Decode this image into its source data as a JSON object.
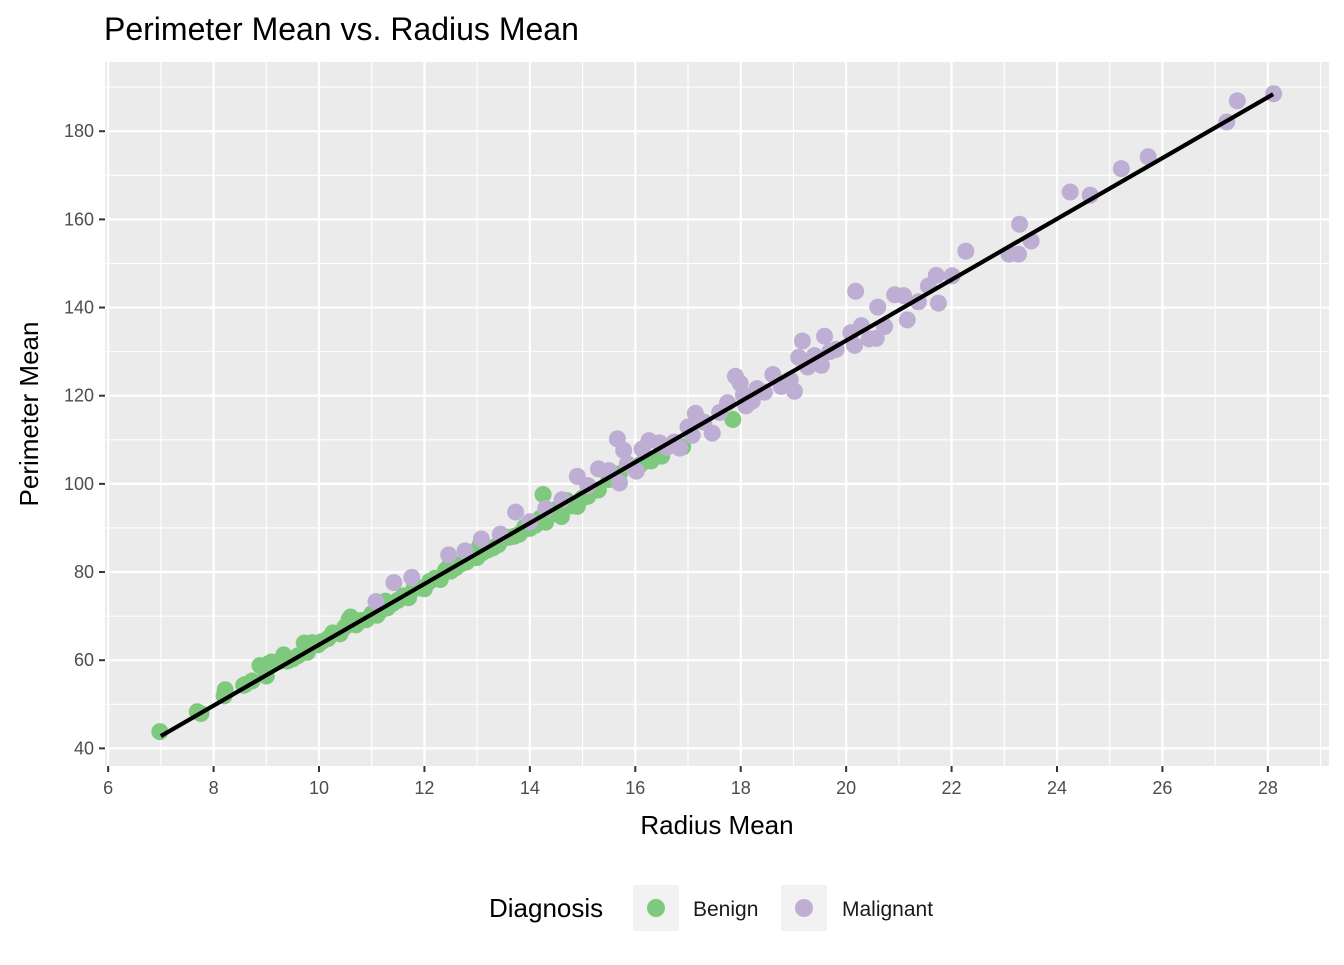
{
  "chart_data": {
    "type": "scatter",
    "title": "Perimeter Mean vs. Radius Mean",
    "xlabel": "Radius Mean",
    "ylabel": "Perimeter Mean",
    "xlim": [
      5.94,
      29.16
    ],
    "ylim": [
      36.0,
      195.7
    ],
    "x_ticks": [
      6,
      8,
      10,
      12,
      14,
      16,
      18,
      20,
      22,
      24,
      26,
      28
    ],
    "y_ticks": [
      40,
      60,
      80,
      100,
      120,
      140,
      160,
      180
    ],
    "grid": true,
    "legend": {
      "title": "Diagnosis",
      "placement": "bottom",
      "entries": [
        {
          "label": "Benign",
          "color": "#7fc97f"
        },
        {
          "label": "Malignant",
          "color": "#beaed4"
        }
      ]
    },
    "trend_line": {
      "x": [
        7.0,
        28.1
      ],
      "y": [
        42.8,
        188.4
      ],
      "color": "#000000"
    },
    "series": [
      {
        "name": "Benign",
        "color": "#7fc97f",
        "points": [
          [
            6.98,
            43.8
          ],
          [
            7.69,
            48.3
          ],
          [
            7.76,
            47.9
          ],
          [
            8.2,
            51.9
          ],
          [
            8.22,
            53.3
          ],
          [
            8.57,
            54.3
          ],
          [
            8.6,
            54.5
          ],
          [
            8.73,
            55.3
          ],
          [
            8.88,
            58.8
          ],
          [
            9.0,
            56.4
          ],
          [
            9.04,
            59.2
          ],
          [
            9.1,
            59.6
          ],
          [
            9.27,
            59.8
          ],
          [
            9.33,
            61.2
          ],
          [
            9.4,
            59.8
          ],
          [
            9.5,
            60.3
          ],
          [
            9.6,
            61.0
          ],
          [
            9.72,
            63.9
          ],
          [
            9.78,
            61.8
          ],
          [
            9.87,
            64.0
          ],
          [
            9.98,
            63.5
          ],
          [
            10.05,
            64.2
          ],
          [
            10.17,
            64.9
          ],
          [
            10.26,
            66.2
          ],
          [
            10.4,
            66.0
          ],
          [
            10.49,
            67.5
          ],
          [
            10.57,
            69.3
          ],
          [
            10.6,
            69.8
          ],
          [
            10.7,
            68.0
          ],
          [
            10.8,
            69.0
          ],
          [
            10.9,
            69.2
          ],
          [
            11.0,
            70.5
          ],
          [
            11.1,
            70.2
          ],
          [
            11.2,
            71.5
          ],
          [
            11.26,
            73.4
          ],
          [
            11.3,
            71.9
          ],
          [
            11.4,
            72.9
          ],
          [
            11.5,
            73.6
          ],
          [
            11.6,
            74.6
          ],
          [
            11.7,
            74.2
          ],
          [
            11.8,
            76.2
          ],
          [
            11.9,
            76.4
          ],
          [
            12.0,
            76.2
          ],
          [
            12.1,
            77.9
          ],
          [
            12.2,
            78.6
          ],
          [
            12.3,
            78.3
          ],
          [
            12.4,
            80.4
          ],
          [
            12.46,
            81.2
          ],
          [
            12.5,
            80.2
          ],
          [
            12.6,
            81.0
          ],
          [
            12.7,
            81.9
          ],
          [
            12.8,
            82.3
          ],
          [
            12.87,
            83.5
          ],
          [
            12.9,
            84.4
          ],
          [
            13.0,
            83.3
          ],
          [
            13.05,
            86.0
          ],
          [
            13.1,
            84.4
          ],
          [
            13.2,
            85.0
          ],
          [
            13.3,
            85.5
          ],
          [
            13.4,
            86.2
          ],
          [
            13.5,
            87.6
          ],
          [
            13.6,
            87.9
          ],
          [
            13.7,
            88.1
          ],
          [
            13.8,
            88.6
          ],
          [
            13.9,
            90.2
          ],
          [
            14.0,
            89.9
          ],
          [
            14.1,
            90.6
          ],
          [
            14.2,
            92.2
          ],
          [
            14.25,
            97.6
          ],
          [
            14.3,
            91.3
          ],
          [
            14.4,
            93.1
          ],
          [
            14.5,
            94.2
          ],
          [
            14.6,
            92.6
          ],
          [
            14.7,
            96.2
          ],
          [
            14.8,
            95.0
          ],
          [
            14.9,
            94.9
          ],
          [
            15.0,
            96.8
          ],
          [
            15.1,
            97.2
          ],
          [
            15.3,
            98.6
          ],
          [
            15.5,
            101.0
          ],
          [
            15.7,
            102.3
          ],
          [
            16.0,
            103.5
          ],
          [
            16.1,
            104.4
          ],
          [
            16.3,
            105.2
          ],
          [
            16.5,
            106.3
          ],
          [
            16.9,
            108.4
          ],
          [
            17.85,
            114.6
          ]
        ]
      },
      {
        "name": "Malignant",
        "color": "#beaed4",
        "points": [
          [
            11.08,
            73.3
          ],
          [
            11.42,
            77.6
          ],
          [
            11.76,
            78.8
          ],
          [
            12.46,
            83.9
          ],
          [
            12.77,
            84.8
          ],
          [
            13.08,
            87.5
          ],
          [
            13.44,
            88.6
          ],
          [
            13.73,
            93.6
          ],
          [
            14.0,
            91.4
          ],
          [
            14.3,
            94.4
          ],
          [
            14.61,
            96.4
          ],
          [
            14.9,
            101.7
          ],
          [
            15.1,
            99.6
          ],
          [
            15.3,
            103.4
          ],
          [
            15.5,
            103.0
          ],
          [
            15.7,
            100.2
          ],
          [
            15.66,
            110.2
          ],
          [
            15.78,
            107.6
          ],
          [
            15.85,
            104.5
          ],
          [
            16.02,
            102.9
          ],
          [
            16.13,
            107.9
          ],
          [
            16.26,
            109.8
          ],
          [
            16.46,
            109.3
          ],
          [
            16.6,
            108.3
          ],
          [
            16.74,
            109.5
          ],
          [
            16.84,
            108.1
          ],
          [
            17.0,
            112.9
          ],
          [
            17.08,
            111.0
          ],
          [
            17.14,
            116.0
          ],
          [
            17.3,
            114.0
          ],
          [
            17.46,
            111.5
          ],
          [
            17.6,
            116.2
          ],
          [
            17.75,
            118.4
          ],
          [
            17.9,
            124.4
          ],
          [
            17.99,
            122.8
          ],
          [
            18.05,
            120.2
          ],
          [
            18.1,
            117.7
          ],
          [
            18.22,
            118.8
          ],
          [
            18.31,
            121.6
          ],
          [
            18.45,
            120.8
          ],
          [
            18.61,
            124.8
          ],
          [
            18.77,
            122.1
          ],
          [
            18.94,
            123.6
          ],
          [
            19.02,
            121.0
          ],
          [
            19.1,
            128.7
          ],
          [
            19.17,
            132.4
          ],
          [
            19.27,
            126.5
          ],
          [
            19.4,
            129.1
          ],
          [
            19.53,
            126.9
          ],
          [
            19.59,
            133.5
          ],
          [
            19.69,
            130.0
          ],
          [
            19.81,
            130.5
          ],
          [
            20.09,
            134.3
          ],
          [
            20.16,
            131.4
          ],
          [
            20.18,
            143.7
          ],
          [
            20.29,
            135.9
          ],
          [
            20.44,
            132.9
          ],
          [
            20.57,
            133.0
          ],
          [
            20.6,
            140.1
          ],
          [
            20.73,
            135.7
          ],
          [
            20.92,
            142.9
          ],
          [
            21.09,
            142.7
          ],
          [
            21.16,
            137.2
          ],
          [
            21.37,
            141.3
          ],
          [
            21.56,
            144.9
          ],
          [
            21.71,
            147.3
          ],
          [
            21.75,
            141.0
          ],
          [
            22.01,
            147.2
          ],
          [
            22.27,
            152.8
          ],
          [
            23.09,
            152.1
          ],
          [
            23.27,
            152.1
          ],
          [
            23.29,
            158.9
          ],
          [
            23.51,
            155.1
          ],
          [
            24.25,
            166.2
          ],
          [
            24.63,
            165.5
          ],
          [
            25.22,
            171.5
          ],
          [
            25.73,
            174.2
          ],
          [
            27.22,
            182.1
          ],
          [
            27.42,
            186.9
          ],
          [
            28.11,
            188.5
          ]
        ]
      }
    ]
  }
}
